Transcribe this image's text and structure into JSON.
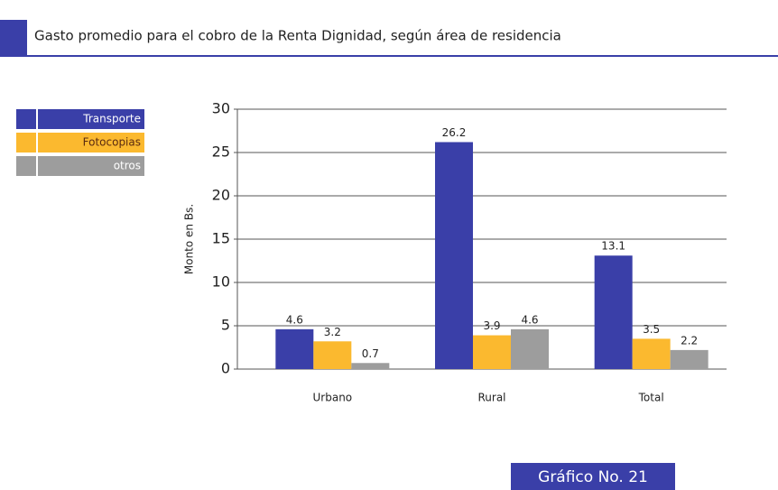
{
  "chart_data": {
    "type": "bar",
    "title": "Gasto promedio para el cobro de la Renta Dignidad, según área de residencia",
    "y_label": "Monto en Bs.",
    "categories": [
      "Urbano",
      "Rural",
      "Total"
    ],
    "series": [
      {
        "name": "Transporte",
        "color": "#3a3fa8",
        "values": [
          4.6,
          26.2,
          13.1
        ]
      },
      {
        "name": "Fotocopias",
        "color": "#fbb92f",
        "values": [
          3.2,
          3.9,
          3.5
        ]
      },
      {
        "name": "otros",
        "color": "#9d9d9d",
        "values": [
          0.7,
          4.6,
          2.2
        ]
      }
    ],
    "ylim": [
      0,
      30
    ],
    "yticks": [
      0,
      5,
      10,
      15,
      20,
      25,
      30
    ],
    "grid": true,
    "legend": "left",
    "footer": "Gráfico No. 21"
  }
}
